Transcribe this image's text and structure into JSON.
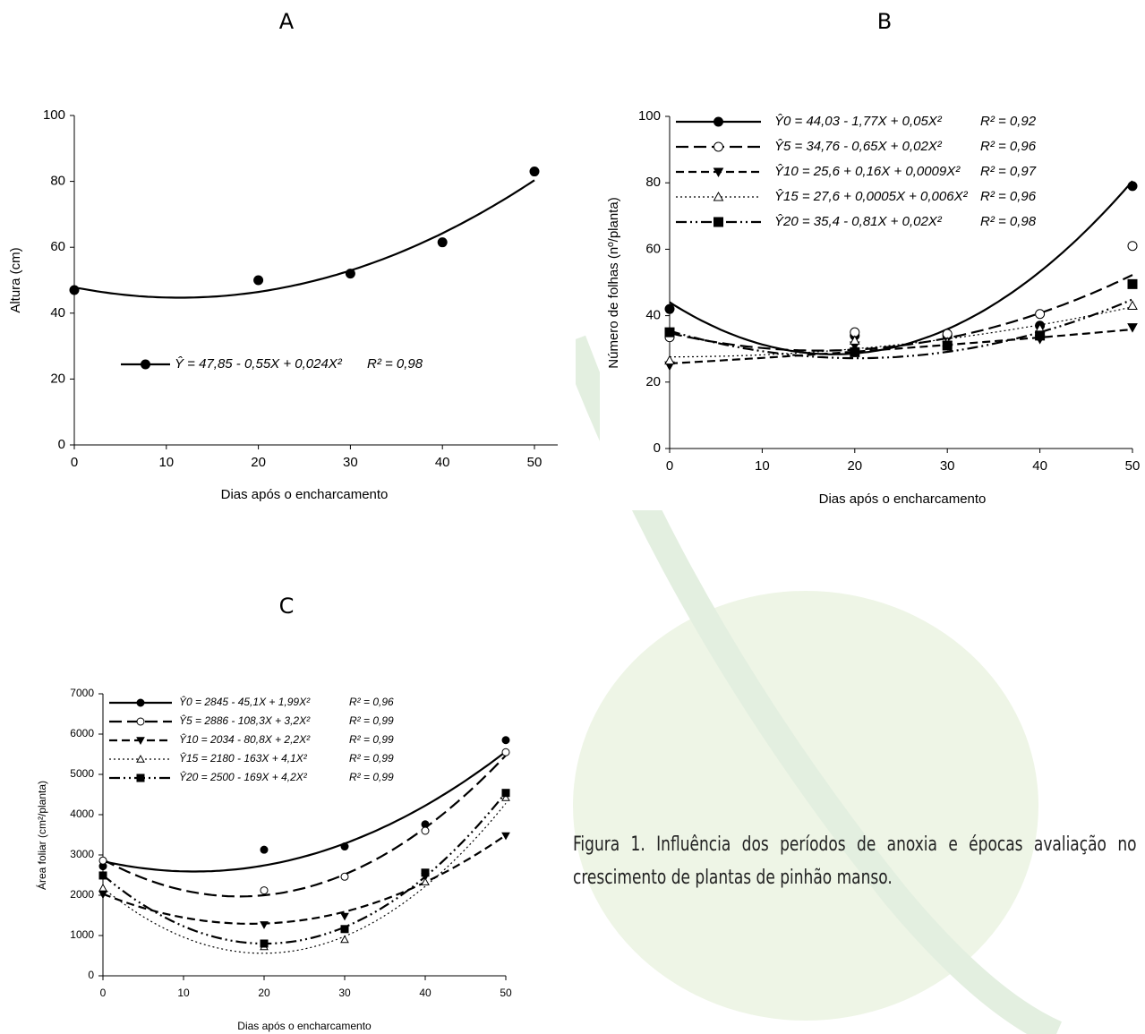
{
  "chart_data": [
    {
      "type": "scatter",
      "title": "A",
      "xlabel": "Dias após o encharcamento",
      "ylabel": "Altura (cm)",
      "x": [
        0,
        20,
        30,
        40,
        50
      ],
      "xlim": [
        0,
        50
      ],
      "xticks": [
        0,
        10,
        20,
        30,
        40,
        50
      ],
      "ylim": [
        0,
        100
      ],
      "yticks": [
        0,
        20,
        40,
        60,
        80,
        100
      ],
      "series": [
        {
          "name": "Ŷ = 47,85 - 0,55X + 0,024X²",
          "r2": "R² = 0,98",
          "color": "#000000",
          "marker": "circle",
          "dash": "solid",
          "values": [
            47,
            50,
            52,
            61.5,
            83
          ],
          "fit": [
            47.85,
            -0.55,
            0.024
          ]
        }
      ]
    },
    {
      "type": "scatter",
      "title": "B",
      "xlabel": "Dias após o encharcamento",
      "ylabel": "Número de folhas (nº/planta)",
      "x": [
        0,
        20,
        30,
        40,
        50
      ],
      "xlim": [
        0,
        50
      ],
      "xticks": [
        0,
        10,
        20,
        30,
        40,
        50
      ],
      "ylim": [
        0,
        100
      ],
      "yticks": [
        0,
        20,
        40,
        60,
        80,
        100
      ],
      "series": [
        {
          "name": "Ŷ0 = 44,03 - 1,77X + 0,05X²",
          "r2": "R² = 0,92",
          "color": "#000000",
          "marker": "circle",
          "dash": "solid",
          "values": [
            42,
            34,
            34,
            37,
            79
          ],
          "fit": [
            44.03,
            -1.77,
            0.05
          ]
        },
        {
          "name": "Ŷ5 = 34,76 - 0,65X + 0,02X²",
          "r2": "R² = 0,96",
          "color": "#000000",
          "marker": "circle-open",
          "dash": "longdash",
          "values": [
            33.5,
            35,
            34.5,
            40.5,
            61
          ],
          "fit": [
            34.76,
            -0.65,
            0.02
          ]
        },
        {
          "name": "Ŷ10 = 25,6 + 0,16X + 0,0009X²",
          "r2": "R² = 0,97",
          "color": "#000000",
          "marker": "triangle-down",
          "dash": "dash",
          "values": [
            25,
            31,
            31,
            33,
            36.5
          ],
          "fit": [
            25.6,
            0.16,
            0.0009
          ]
        },
        {
          "name": "Ŷ15 = 27,6 + 0,0005X + 0,006X²",
          "r2": "R² = 0,96",
          "color": "#000000",
          "marker": "triangle-open",
          "dash": "dot",
          "values": [
            26.5,
            32.5,
            32,
            36,
            43
          ],
          "fit": [
            27.6,
            0.0005,
            0.006
          ]
        },
        {
          "name": "Ŷ20 = 35,4 - 0,81X + 0,02X²",
          "r2": "R² = 0,98",
          "color": "#000000",
          "marker": "square",
          "dash": "dashdotdot",
          "values": [
            35,
            29,
            31,
            34,
            49.5
          ],
          "fit": [
            35.4,
            -0.81,
            0.02
          ]
        }
      ]
    },
    {
      "type": "scatter",
      "title": "C",
      "xlabel": "Dias após o encharcamento",
      "ylabel": "Área foliar (cm²/planta)",
      "x": [
        0,
        20,
        30,
        40,
        50
      ],
      "xlim": [
        0,
        50
      ],
      "xticks": [
        0,
        10,
        20,
        30,
        40,
        50
      ],
      "ylim": [
        0,
        7000
      ],
      "yticks": [
        0,
        1000,
        2000,
        3000,
        4000,
        5000,
        6000,
        7000
      ],
      "series": [
        {
          "name": "Ŷ0 = 2845 - 45,1X + 1,99X²",
          "r2": "R² = 0,96",
          "color": "#000000",
          "marker": "circle",
          "dash": "solid",
          "values": [
            2720,
            3130,
            3210,
            3760,
            5850
          ],
          "fit": [
            2845,
            -45.1,
            1.99
          ]
        },
        {
          "name": "Ŷ5 = 2886 - 108,3X + 3,2X²",
          "r2": "R² = 0,99",
          "color": "#000000",
          "marker": "circle-open",
          "dash": "longdash",
          "values": [
            2860,
            2120,
            2460,
            3600,
            5550
          ],
          "fit": [
            2886,
            -108.3,
            3.2
          ]
        },
        {
          "name": "Ŷ10 = 2034 - 80,8X + 2,2X²",
          "r2": "R² = 0,99",
          "color": "#000000",
          "marker": "triangle-down",
          "dash": "dash",
          "values": [
            2020,
            1270,
            1480,
            2460,
            3480
          ],
          "fit": [
            2034,
            -80.8,
            2.2
          ]
        },
        {
          "name": "Ŷ15 = 2180 - 163X + 4,1X²",
          "r2": "R² = 0,99",
          "color": "#000000",
          "marker": "triangle-open",
          "dash": "dot",
          "values": [
            2180,
            720,
            900,
            2330,
            4420
          ],
          "fit": [
            2180,
            -163,
            4.1
          ]
        },
        {
          "name": "Ŷ20 = 2500 - 169X + 4,2X²",
          "r2": "R² = 0,99",
          "color": "#000000",
          "marker": "square",
          "dash": "dashdotdot",
          "values": [
            2490,
            800,
            1160,
            2560,
            4540
          ],
          "fit": [
            2500,
            -169,
            4.2
          ]
        }
      ]
    }
  ],
  "caption": "Figura 1. Influência dos períodos de anoxia e épocas avaliação no crescimento de plantas de pinhão manso."
}
